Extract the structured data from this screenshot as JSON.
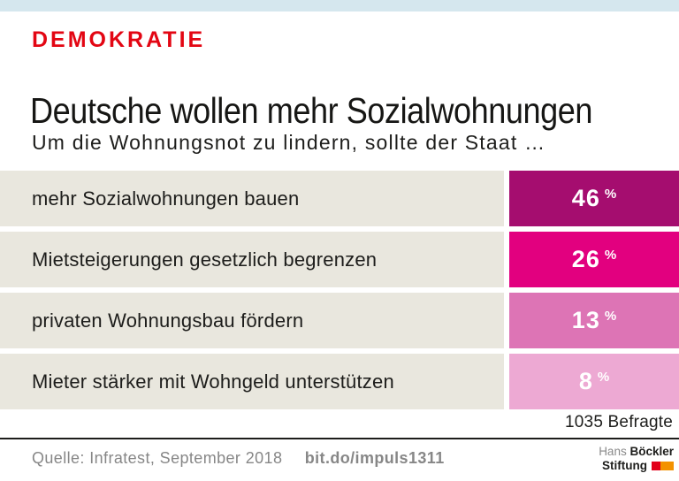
{
  "header": {
    "kicker": "DEMOKRATIE",
    "title": "Deutsche wollen mehr Sozialwohnungen",
    "question": "Um die Wohnungsnot zu lindern, sollte der Staat …"
  },
  "chart_data": {
    "type": "bar",
    "title": "Deutsche wollen mehr Sozialwohnungen",
    "subtitle": "Um die Wohnungsnot zu lindern, sollte der Staat …",
    "categories": [
      "mehr Sozialwohnungen bauen",
      "Mietsteigerungen gesetzlich begrenzen",
      "privaten Wohnungsbau fördern",
      "Mieter stärker mit Wohngeld unterstützen"
    ],
    "values": [
      46,
      26,
      13,
      8
    ],
    "unit": "%",
    "value_labels": [
      "46 %",
      "26 %",
      "13 %",
      "8 %"
    ],
    "bar_colors": [
      "#a50d6f",
      "#e2007f",
      "#dd74b5",
      "#eda9d3"
    ],
    "sample_note": "1035 Befragte",
    "layout_hint": "horizontal uniform-width value blocks, color saturation encodes rank, labels on beige band left"
  },
  "footer": {
    "source": "Quelle: Infratest, September 2018",
    "link": "bit.do/impuls1311"
  },
  "logo": {
    "hans": "Hans",
    "boeckler": "Böckler",
    "stiftung": "Stiftung"
  },
  "colors": {
    "accent_red": "#e30613",
    "top_bar_blue": "#d5e7ee",
    "row_label_bg": "#e9e7de",
    "text_dark": "#1d1d1b",
    "footer_gray": "#878787",
    "logo_red": "#e2001a",
    "logo_orange": "#f39200"
  }
}
